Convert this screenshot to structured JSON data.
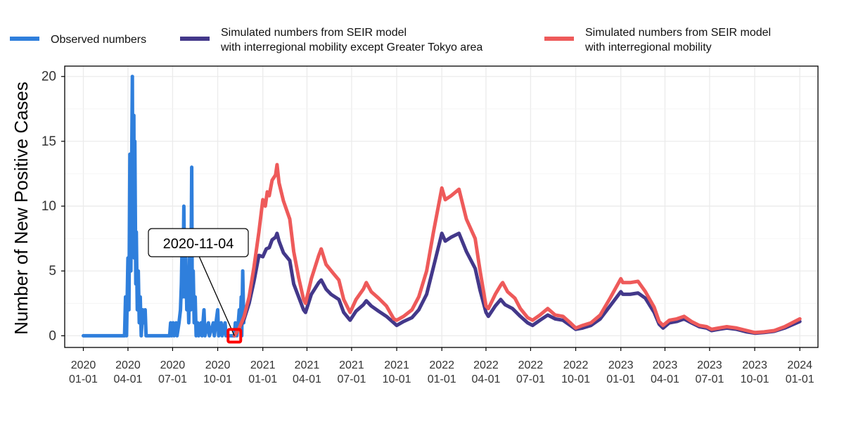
{
  "colors": {
    "observed": "#2F7FDC",
    "sim_except_tokyo": "#43388A",
    "sim_full": "#EE5A5A",
    "marker": "#FF0000",
    "grid": "#EBEBEB",
    "axis": "#000000"
  },
  "chart_data": {
    "type": "line",
    "title": "",
    "xlabel": "",
    "ylabel": "Number of New Positive Cases",
    "x_type": "date",
    "xlim": [
      "2019-11-24",
      "2024-02-07"
    ],
    "ylim": [
      -0.9,
      20.8
    ],
    "grid": true,
    "legend_position": "top",
    "x_ticks": [
      "2020-01-01",
      "2020-04-01",
      "2020-07-01",
      "2020-10-01",
      "2021-01-01",
      "2021-04-01",
      "2021-07-01",
      "2021-10-01",
      "2022-01-01",
      "2022-04-01",
      "2022-07-01",
      "2022-10-01",
      "2023-01-01",
      "2023-04-01",
      "2023-07-01",
      "2023-10-01",
      "2024-01-01"
    ],
    "x_tick_labels": [
      [
        "2020",
        "01-01"
      ],
      [
        "2020",
        "04-01"
      ],
      [
        "2020",
        "07-01"
      ],
      [
        "2020",
        "10-01"
      ],
      [
        "2021",
        "01-01"
      ],
      [
        "2021",
        "04-01"
      ],
      [
        "2021",
        "07-01"
      ],
      [
        "2021",
        "10-01"
      ],
      [
        "2022",
        "01-01"
      ],
      [
        "2022",
        "04-01"
      ],
      [
        "2022",
        "07-01"
      ],
      [
        "2022",
        "10-01"
      ],
      [
        "2023",
        "01-01"
      ],
      [
        "2023",
        "04-01"
      ],
      [
        "2023",
        "07-01"
      ],
      [
        "2023",
        "10-01"
      ],
      [
        "2024",
        "01-01"
      ]
    ],
    "y_ticks": [
      0,
      5,
      10,
      15,
      20
    ],
    "y_tick_labels": [
      "0",
      "5",
      "10",
      "15",
      "20"
    ],
    "annotation": {
      "label": "2020-11-04",
      "date": "2020-11-04",
      "value": 0
    },
    "series": [
      {
        "name": "Observed numbers",
        "color_key": "observed",
        "points": [
          [
            "2020-01-01",
            0
          ],
          [
            "2020-03-25",
            0
          ],
          [
            "2020-03-27",
            3
          ],
          [
            "2020-03-29",
            0
          ],
          [
            "2020-04-01",
            6
          ],
          [
            "2020-04-03",
            2
          ],
          [
            "2020-04-05",
            14
          ],
          [
            "2020-04-07",
            5
          ],
          [
            "2020-04-08",
            10
          ],
          [
            "2020-04-10",
            20
          ],
          [
            "2020-04-11",
            8
          ],
          [
            "2020-04-13",
            17
          ],
          [
            "2020-04-14",
            6
          ],
          [
            "2020-04-15",
            15
          ],
          [
            "2020-04-17",
            4
          ],
          [
            "2020-04-18",
            8
          ],
          [
            "2020-04-20",
            2
          ],
          [
            "2020-04-22",
            5
          ],
          [
            "2020-04-24",
            1
          ],
          [
            "2020-04-26",
            3
          ],
          [
            "2020-04-28",
            0
          ],
          [
            "2020-05-01",
            2
          ],
          [
            "2020-05-03",
            1
          ],
          [
            "2020-05-06",
            2
          ],
          [
            "2020-05-08",
            0
          ],
          [
            "2020-06-25",
            0
          ],
          [
            "2020-06-27",
            1
          ],
          [
            "2020-06-29",
            0
          ],
          [
            "2020-07-02",
            1
          ],
          [
            "2020-07-04",
            0
          ],
          [
            "2020-07-08",
            1
          ],
          [
            "2020-07-10",
            0
          ],
          [
            "2020-07-14",
            1
          ],
          [
            "2020-07-17",
            2
          ],
          [
            "2020-07-19",
            4
          ],
          [
            "2020-07-21",
            8
          ],
          [
            "2020-07-22",
            3
          ],
          [
            "2020-07-24",
            10
          ],
          [
            "2020-07-26",
            3
          ],
          [
            "2020-07-28",
            6
          ],
          [
            "2020-07-30",
            2
          ],
          [
            "2020-08-01",
            4
          ],
          [
            "2020-08-03",
            1
          ],
          [
            "2020-08-05",
            7
          ],
          [
            "2020-08-07",
            2
          ],
          [
            "2020-08-09",
            13
          ],
          [
            "2020-08-10",
            3
          ],
          [
            "2020-08-12",
            5
          ],
          [
            "2020-08-14",
            1
          ],
          [
            "2020-08-16",
            3
          ],
          [
            "2020-08-18",
            0
          ],
          [
            "2020-08-21",
            1
          ],
          [
            "2020-08-23",
            0
          ],
          [
            "2020-08-28",
            1
          ],
          [
            "2020-08-30",
            0
          ],
          [
            "2020-09-03",
            2
          ],
          [
            "2020-09-05",
            0
          ],
          [
            "2020-09-12",
            1
          ],
          [
            "2020-09-14",
            0
          ],
          [
            "2020-09-22",
            1
          ],
          [
            "2020-09-24",
            0
          ],
          [
            "2020-10-01",
            2
          ],
          [
            "2020-10-03",
            0
          ],
          [
            "2020-10-08",
            1
          ],
          [
            "2020-10-10",
            0
          ],
          [
            "2020-10-16",
            1
          ],
          [
            "2020-10-18",
            0
          ],
          [
            "2020-11-04",
            0
          ],
          [
            "2020-11-06",
            1
          ],
          [
            "2020-11-09",
            0
          ],
          [
            "2020-11-12",
            1
          ],
          [
            "2020-11-14",
            2
          ],
          [
            "2020-11-16",
            1
          ],
          [
            "2020-11-18",
            3
          ],
          [
            "2020-11-19",
            0
          ],
          [
            "2020-11-21",
            5
          ],
          [
            "2020-11-23",
            1
          ],
          [
            "2020-11-24",
            2
          ]
        ]
      },
      {
        "name": "Simulated numbers from SEIR model\nwith interregional mobility except Greater Tokyo area",
        "color_key": "sim_except_tokyo",
        "points": [
          [
            "2020-11-04",
            0
          ],
          [
            "2020-11-14",
            0.6
          ],
          [
            "2020-11-24",
            1.3
          ],
          [
            "2020-12-04",
            2.5
          ],
          [
            "2020-12-14",
            4.2
          ],
          [
            "2020-12-24",
            6.2
          ],
          [
            "2021-01-01",
            6.1
          ],
          [
            "2021-01-08",
            6.7
          ],
          [
            "2021-01-14",
            6.8
          ],
          [
            "2021-01-20",
            7.4
          ],
          [
            "2021-01-27",
            7.6
          ],
          [
            "2021-01-30",
            7.9
          ],
          [
            "2021-02-03",
            7.3
          ],
          [
            "2021-02-12",
            6.4
          ],
          [
            "2021-02-25",
            5.8
          ],
          [
            "2021-03-05",
            4.0
          ],
          [
            "2021-03-15",
            3.0
          ],
          [
            "2021-03-25",
            2.0
          ],
          [
            "2021-03-29",
            1.8
          ],
          [
            "2021-04-10",
            3.2
          ],
          [
            "2021-04-25",
            4.1
          ],
          [
            "2021-04-30",
            4.3
          ],
          [
            "2021-05-10",
            3.6
          ],
          [
            "2021-05-20",
            3.2
          ],
          [
            "2021-06-05",
            2.8
          ],
          [
            "2021-06-15",
            1.8
          ],
          [
            "2021-06-28",
            1.2
          ],
          [
            "2021-07-10",
            1.9
          ],
          [
            "2021-07-25",
            2.4
          ],
          [
            "2021-07-31",
            2.7
          ],
          [
            "2021-08-10",
            2.3
          ],
          [
            "2021-08-25",
            1.9
          ],
          [
            "2021-09-10",
            1.5
          ],
          [
            "2021-09-25",
            1.0
          ],
          [
            "2021-10-01",
            0.8
          ],
          [
            "2021-10-15",
            1.1
          ],
          [
            "2021-11-01",
            1.4
          ],
          [
            "2021-11-15",
            2.0
          ],
          [
            "2021-12-01",
            3.2
          ],
          [
            "2021-12-15",
            5.3
          ],
          [
            "2022-01-01",
            7.9
          ],
          [
            "2022-01-08",
            7.3
          ],
          [
            "2022-01-20",
            7.6
          ],
          [
            "2022-02-05",
            7.9
          ],
          [
            "2022-02-20",
            6.5
          ],
          [
            "2022-03-10",
            5.2
          ],
          [
            "2022-03-20",
            3.5
          ],
          [
            "2022-04-01",
            1.8
          ],
          [
            "2022-04-06",
            1.5
          ],
          [
            "2022-04-20",
            2.3
          ],
          [
            "2022-05-01",
            2.8
          ],
          [
            "2022-05-10",
            2.4
          ],
          [
            "2022-05-25",
            2.1
          ],
          [
            "2022-06-10",
            1.5
          ],
          [
            "2022-06-25",
            1.0
          ],
          [
            "2022-07-05",
            0.8
          ],
          [
            "2022-07-20",
            1.2
          ],
          [
            "2022-08-05",
            1.6
          ],
          [
            "2022-08-20",
            1.3
          ],
          [
            "2022-09-05",
            1.2
          ],
          [
            "2022-09-20",
            0.8
          ],
          [
            "2022-10-01",
            0.5
          ],
          [
            "2022-10-15",
            0.6
          ],
          [
            "2022-11-01",
            0.8
          ],
          [
            "2022-11-20",
            1.3
          ],
          [
            "2022-12-10",
            2.3
          ],
          [
            "2023-01-01",
            3.4
          ],
          [
            "2023-01-05",
            3.2
          ],
          [
            "2023-01-20",
            3.2
          ],
          [
            "2023-02-05",
            3.3
          ],
          [
            "2023-02-20",
            2.9
          ],
          [
            "2023-03-10",
            1.8
          ],
          [
            "2023-03-20",
            0.9
          ],
          [
            "2023-03-28",
            0.6
          ],
          [
            "2023-04-10",
            1.0
          ],
          [
            "2023-04-25",
            1.1
          ],
          [
            "2023-05-10",
            1.3
          ],
          [
            "2023-05-25",
            1.0
          ],
          [
            "2023-06-10",
            0.7
          ],
          [
            "2023-06-25",
            0.6
          ],
          [
            "2023-07-05",
            0.4
          ],
          [
            "2023-07-20",
            0.5
          ],
          [
            "2023-08-05",
            0.6
          ],
          [
            "2023-08-25",
            0.5
          ],
          [
            "2023-09-15",
            0.3
          ],
          [
            "2023-10-01",
            0.2
          ],
          [
            "2023-10-20",
            0.25
          ],
          [
            "2023-11-10",
            0.35
          ],
          [
            "2023-12-01",
            0.6
          ],
          [
            "2024-01-01",
            1.1
          ]
        ]
      },
      {
        "name": "Simulated numbers from SEIR model\nwith interregional mobility",
        "color_key": "sim_full",
        "points": [
          [
            "2020-11-04",
            0
          ],
          [
            "2020-11-14",
            0.6
          ],
          [
            "2020-11-24",
            1.5
          ],
          [
            "2020-12-04",
            3.0
          ],
          [
            "2020-12-14",
            5.3
          ],
          [
            "2020-12-24",
            8.0
          ],
          [
            "2021-01-01",
            10.5
          ],
          [
            "2021-01-06",
            10.0
          ],
          [
            "2021-01-10",
            11.1
          ],
          [
            "2021-01-14",
            10.8
          ],
          [
            "2021-01-20",
            12.0
          ],
          [
            "2021-01-27",
            12.4
          ],
          [
            "2021-01-30",
            13.2
          ],
          [
            "2021-02-03",
            11.8
          ],
          [
            "2021-02-12",
            10.4
          ],
          [
            "2021-02-25",
            9.0
          ],
          [
            "2021-03-05",
            6.5
          ],
          [
            "2021-03-15",
            4.5
          ],
          [
            "2021-03-25",
            2.8
          ],
          [
            "2021-03-29",
            2.5
          ],
          [
            "2021-04-10",
            4.4
          ],
          [
            "2021-04-25",
            6.2
          ],
          [
            "2021-04-30",
            6.7
          ],
          [
            "2021-05-10",
            5.5
          ],
          [
            "2021-05-25",
            4.8
          ],
          [
            "2021-06-05",
            4.3
          ],
          [
            "2021-06-15",
            2.8
          ],
          [
            "2021-06-28",
            1.8
          ],
          [
            "2021-07-10",
            2.8
          ],
          [
            "2021-07-25",
            3.6
          ],
          [
            "2021-07-31",
            4.1
          ],
          [
            "2021-08-10",
            3.4
          ],
          [
            "2021-08-25",
            2.9
          ],
          [
            "2021-09-10",
            2.3
          ],
          [
            "2021-09-25",
            1.3
          ],
          [
            "2021-10-01",
            1.2
          ],
          [
            "2021-10-15",
            1.5
          ],
          [
            "2021-11-01",
            2.0
          ],
          [
            "2021-11-15",
            3.0
          ],
          [
            "2021-12-01",
            5.0
          ],
          [
            "2021-12-15",
            8.0
          ],
          [
            "2022-01-01",
            11.4
          ],
          [
            "2022-01-08",
            10.5
          ],
          [
            "2022-01-20",
            10.8
          ],
          [
            "2022-02-05",
            11.3
          ],
          [
            "2022-02-20",
            9.0
          ],
          [
            "2022-03-10",
            7.5
          ],
          [
            "2022-03-20",
            5.0
          ],
          [
            "2022-04-01",
            2.3
          ],
          [
            "2022-04-06",
            2.1
          ],
          [
            "2022-04-20",
            3.2
          ],
          [
            "2022-05-01",
            3.9
          ],
          [
            "2022-05-05",
            4.1
          ],
          [
            "2022-05-15",
            3.4
          ],
          [
            "2022-05-30",
            2.9
          ],
          [
            "2022-06-10",
            2.1
          ],
          [
            "2022-06-25",
            1.4
          ],
          [
            "2022-07-05",
            1.2
          ],
          [
            "2022-07-20",
            1.6
          ],
          [
            "2022-08-05",
            2.1
          ],
          [
            "2022-08-20",
            1.6
          ],
          [
            "2022-09-05",
            1.5
          ],
          [
            "2022-09-20",
            1.0
          ],
          [
            "2022-10-01",
            0.6
          ],
          [
            "2022-10-15",
            0.8
          ],
          [
            "2022-11-01",
            1.0
          ],
          [
            "2022-11-20",
            1.6
          ],
          [
            "2022-12-10",
            2.9
          ],
          [
            "2023-01-01",
            4.4
          ],
          [
            "2023-01-05",
            4.1
          ],
          [
            "2023-01-20",
            4.1
          ],
          [
            "2023-02-05",
            4.2
          ],
          [
            "2023-02-20",
            3.4
          ],
          [
            "2023-03-10",
            2.2
          ],
          [
            "2023-03-20",
            1.1
          ],
          [
            "2023-03-28",
            0.8
          ],
          [
            "2023-04-10",
            1.2
          ],
          [
            "2023-04-25",
            1.3
          ],
          [
            "2023-05-10",
            1.5
          ],
          [
            "2023-05-25",
            1.1
          ],
          [
            "2023-06-10",
            0.8
          ],
          [
            "2023-06-25",
            0.7
          ],
          [
            "2023-07-05",
            0.5
          ],
          [
            "2023-07-20",
            0.6
          ],
          [
            "2023-08-05",
            0.7
          ],
          [
            "2023-08-25",
            0.6
          ],
          [
            "2023-09-15",
            0.4
          ],
          [
            "2023-10-01",
            0.25
          ],
          [
            "2023-10-20",
            0.3
          ],
          [
            "2023-11-10",
            0.4
          ],
          [
            "2023-12-01",
            0.7
          ],
          [
            "2024-01-01",
            1.3
          ]
        ]
      }
    ]
  }
}
